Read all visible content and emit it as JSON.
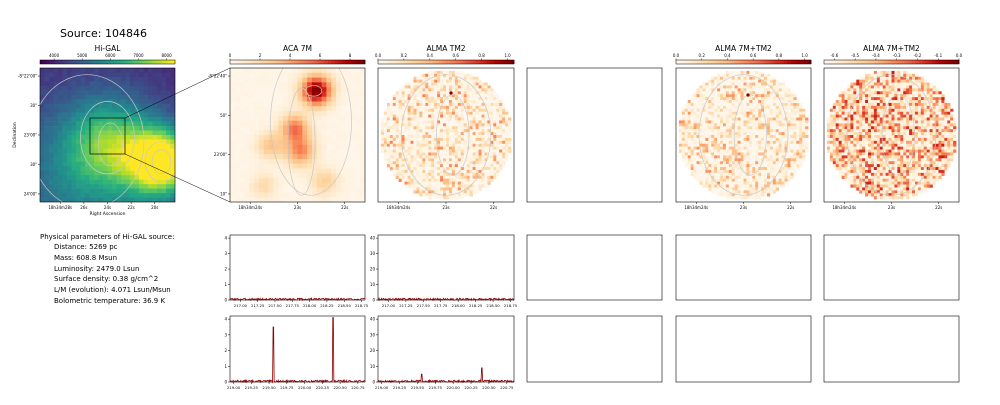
{
  "figure": {
    "suptitle": "Source: 104846"
  },
  "colorscales": {
    "higal": [
      "#440154",
      "#472d7b",
      "#3b528b",
      "#2c728e",
      "#21918c",
      "#28ae80",
      "#5ec962",
      "#addc30",
      "#fde725"
    ],
    "orange": [
      "#fff7ec",
      "#fee8c8",
      "#fdd49e",
      "#fdbb84",
      "#fc8d59",
      "#ef6548",
      "#d7301f",
      "#b30000",
      "#7f0000"
    ],
    "spectrum_line": "#8b0000",
    "contour": "#c8c8c8"
  },
  "info": {
    "title": "Physical parameters of Hi-GAL source:",
    "lines": [
      "Distance: 5269 pc",
      "Mass: 608.8 Msun",
      "Luminosity: 2479.0 Lsun",
      "Surface density: 0.38 g/cm^2",
      "L/M (evolution): 4.071 Lsun/Msun",
      "Bolometric temperature: 36.9 K"
    ]
  },
  "chart_data": [
    {
      "id": "higal",
      "type": "heatmap",
      "title": "Hi-GAL",
      "xlabel": "Right Ascension",
      "ylabel": "Declination",
      "colorbar": {
        "ticks": [
          "4000",
          "5000",
          "6000",
          "7000",
          "8000"
        ],
        "range": [
          3500,
          8300
        ]
      },
      "xticks": [
        "18h34m28s",
        "26s",
        "24s",
        "22s",
        "20s"
      ],
      "yticks": [
        "-8°22'00\"",
        "30\"",
        "23'00\"",
        "30\"",
        "24'00\""
      ],
      "blobs": [
        {
          "x": 0.33,
          "y": 0.16,
          "level": 0.3,
          "spread": 0.4
        },
        {
          "x": 0.52,
          "y": 0.43,
          "level": 0.5,
          "spread": 0.1
        },
        {
          "x": 0.9,
          "y": 0.3,
          "level": 1.0,
          "spread": 0.055
        }
      ]
    },
    {
      "id": "aca7m",
      "type": "heatmap",
      "title": "ACA 7M",
      "colorbar": {
        "ticks": [
          "0",
          "2",
          "4",
          "6",
          "8"
        ],
        "range": [
          0,
          9
        ]
      },
      "xticks": [
        "18h34m24s",
        "23s",
        "22s"
      ],
      "yticks": [
        "-8°22'40\"",
        "50\"",
        "23'00\"",
        "10\""
      ],
      "blobs": [
        {
          "x": 0.64,
          "y": 0.83,
          "level": 1.0,
          "spread": 0.012
        },
        {
          "x": 0.48,
          "y": 0.55,
          "level": 0.55,
          "spread": 0.01
        },
        {
          "x": 0.52,
          "y": 0.38,
          "level": 0.5,
          "spread": 0.012
        },
        {
          "x": 0.3,
          "y": 0.42,
          "level": 0.3,
          "spread": 0.01
        },
        {
          "x": 0.25,
          "y": 0.12,
          "level": 0.2,
          "spread": 0.008
        },
        {
          "x": 0.7,
          "y": 0.15,
          "level": 0.25,
          "spread": 0.01
        }
      ]
    },
    {
      "id": "almatm2",
      "type": "heatmap",
      "title": "ALMA TM2",
      "colorbar": {
        "ticks": [
          "0.0",
          "0.2",
          "0.4",
          "0.6",
          "0.8",
          "1.0"
        ],
        "range": [
          0,
          1.05
        ]
      },
      "xticks": [
        "18h34m24s",
        "23s",
        "22s"
      ],
      "disk": true
    },
    {
      "id": "empty-top",
      "type": "heatmap",
      "empty": true
    },
    {
      "id": "alma7mtm2",
      "type": "heatmap",
      "title": "ALMA 7M+TM2",
      "colorbar": {
        "ticks": [
          "0.0",
          "0.2",
          "0.4",
          "0.6",
          "0.8",
          "1.0"
        ],
        "range": [
          0,
          1.05
        ]
      },
      "xticks": [
        "18h34m24s",
        "23s",
        "22s"
      ],
      "disk": true
    },
    {
      "id": "alma7mtm2b",
      "type": "heatmap",
      "title": "ALMA 7M+TM2",
      "colorbar": {
        "ticks": [
          "-0.6",
          "-0.5",
          "-0.4",
          "-0.3",
          "-0.2",
          "-0.1",
          "0.0"
        ],
        "range": [
          -0.65,
          0.0
        ]
      },
      "xticks": [
        "18h34m24s",
        "23s",
        "22s"
      ],
      "disk": true
    },
    {
      "id": "spec-aca-1",
      "type": "line",
      "x_range": [
        216.85,
        218.8
      ],
      "xticks": [
        "217.00",
        "217.25",
        "217.50",
        "217.75",
        "218.00",
        "218.25",
        "218.50",
        "218.75"
      ],
      "ylim": [
        0,
        4.2
      ],
      "yticks": [
        "0",
        "1",
        "2",
        "3",
        "4"
      ],
      "peaks": []
    },
    {
      "id": "spec-tm2-1",
      "type": "line",
      "x_range": [
        216.85,
        218.8
      ],
      "xticks": [
        "217.00",
        "217.25",
        "217.50",
        "217.75",
        "218.00",
        "218.25",
        "218.50",
        "218.75"
      ],
      "ylim": [
        0,
        42
      ],
      "yticks": [
        "0",
        "10",
        "20",
        "30",
        "40"
      ],
      "peaks": []
    },
    {
      "id": "spec-aca-2",
      "type": "line",
      "x_range": [
        218.95,
        220.85
      ],
      "xticks": [
        "219.00",
        "219.25",
        "219.50",
        "219.75",
        "220.00",
        "220.25",
        "220.50",
        "220.75"
      ],
      "ylim": [
        0,
        4.2
      ],
      "yticks": [
        "0",
        "1",
        "2",
        "3",
        "4"
      ],
      "peaks": [
        {
          "x": 219.56,
          "y": 3.5
        },
        {
          "x": 220.4,
          "y": 4.1
        }
      ]
    },
    {
      "id": "spec-tm2-2",
      "type": "line",
      "x_range": [
        218.95,
        220.85
      ],
      "xticks": [
        "219.00",
        "219.25",
        "219.50",
        "219.75",
        "220.00",
        "220.25",
        "220.50",
        "220.75"
      ],
      "ylim": [
        0,
        42
      ],
      "yticks": [
        "0",
        "10",
        "20",
        "30",
        "40"
      ],
      "peaks": [
        {
          "x": 219.56,
          "y": 5
        },
        {
          "x": 220.4,
          "y": 9
        }
      ]
    }
  ]
}
